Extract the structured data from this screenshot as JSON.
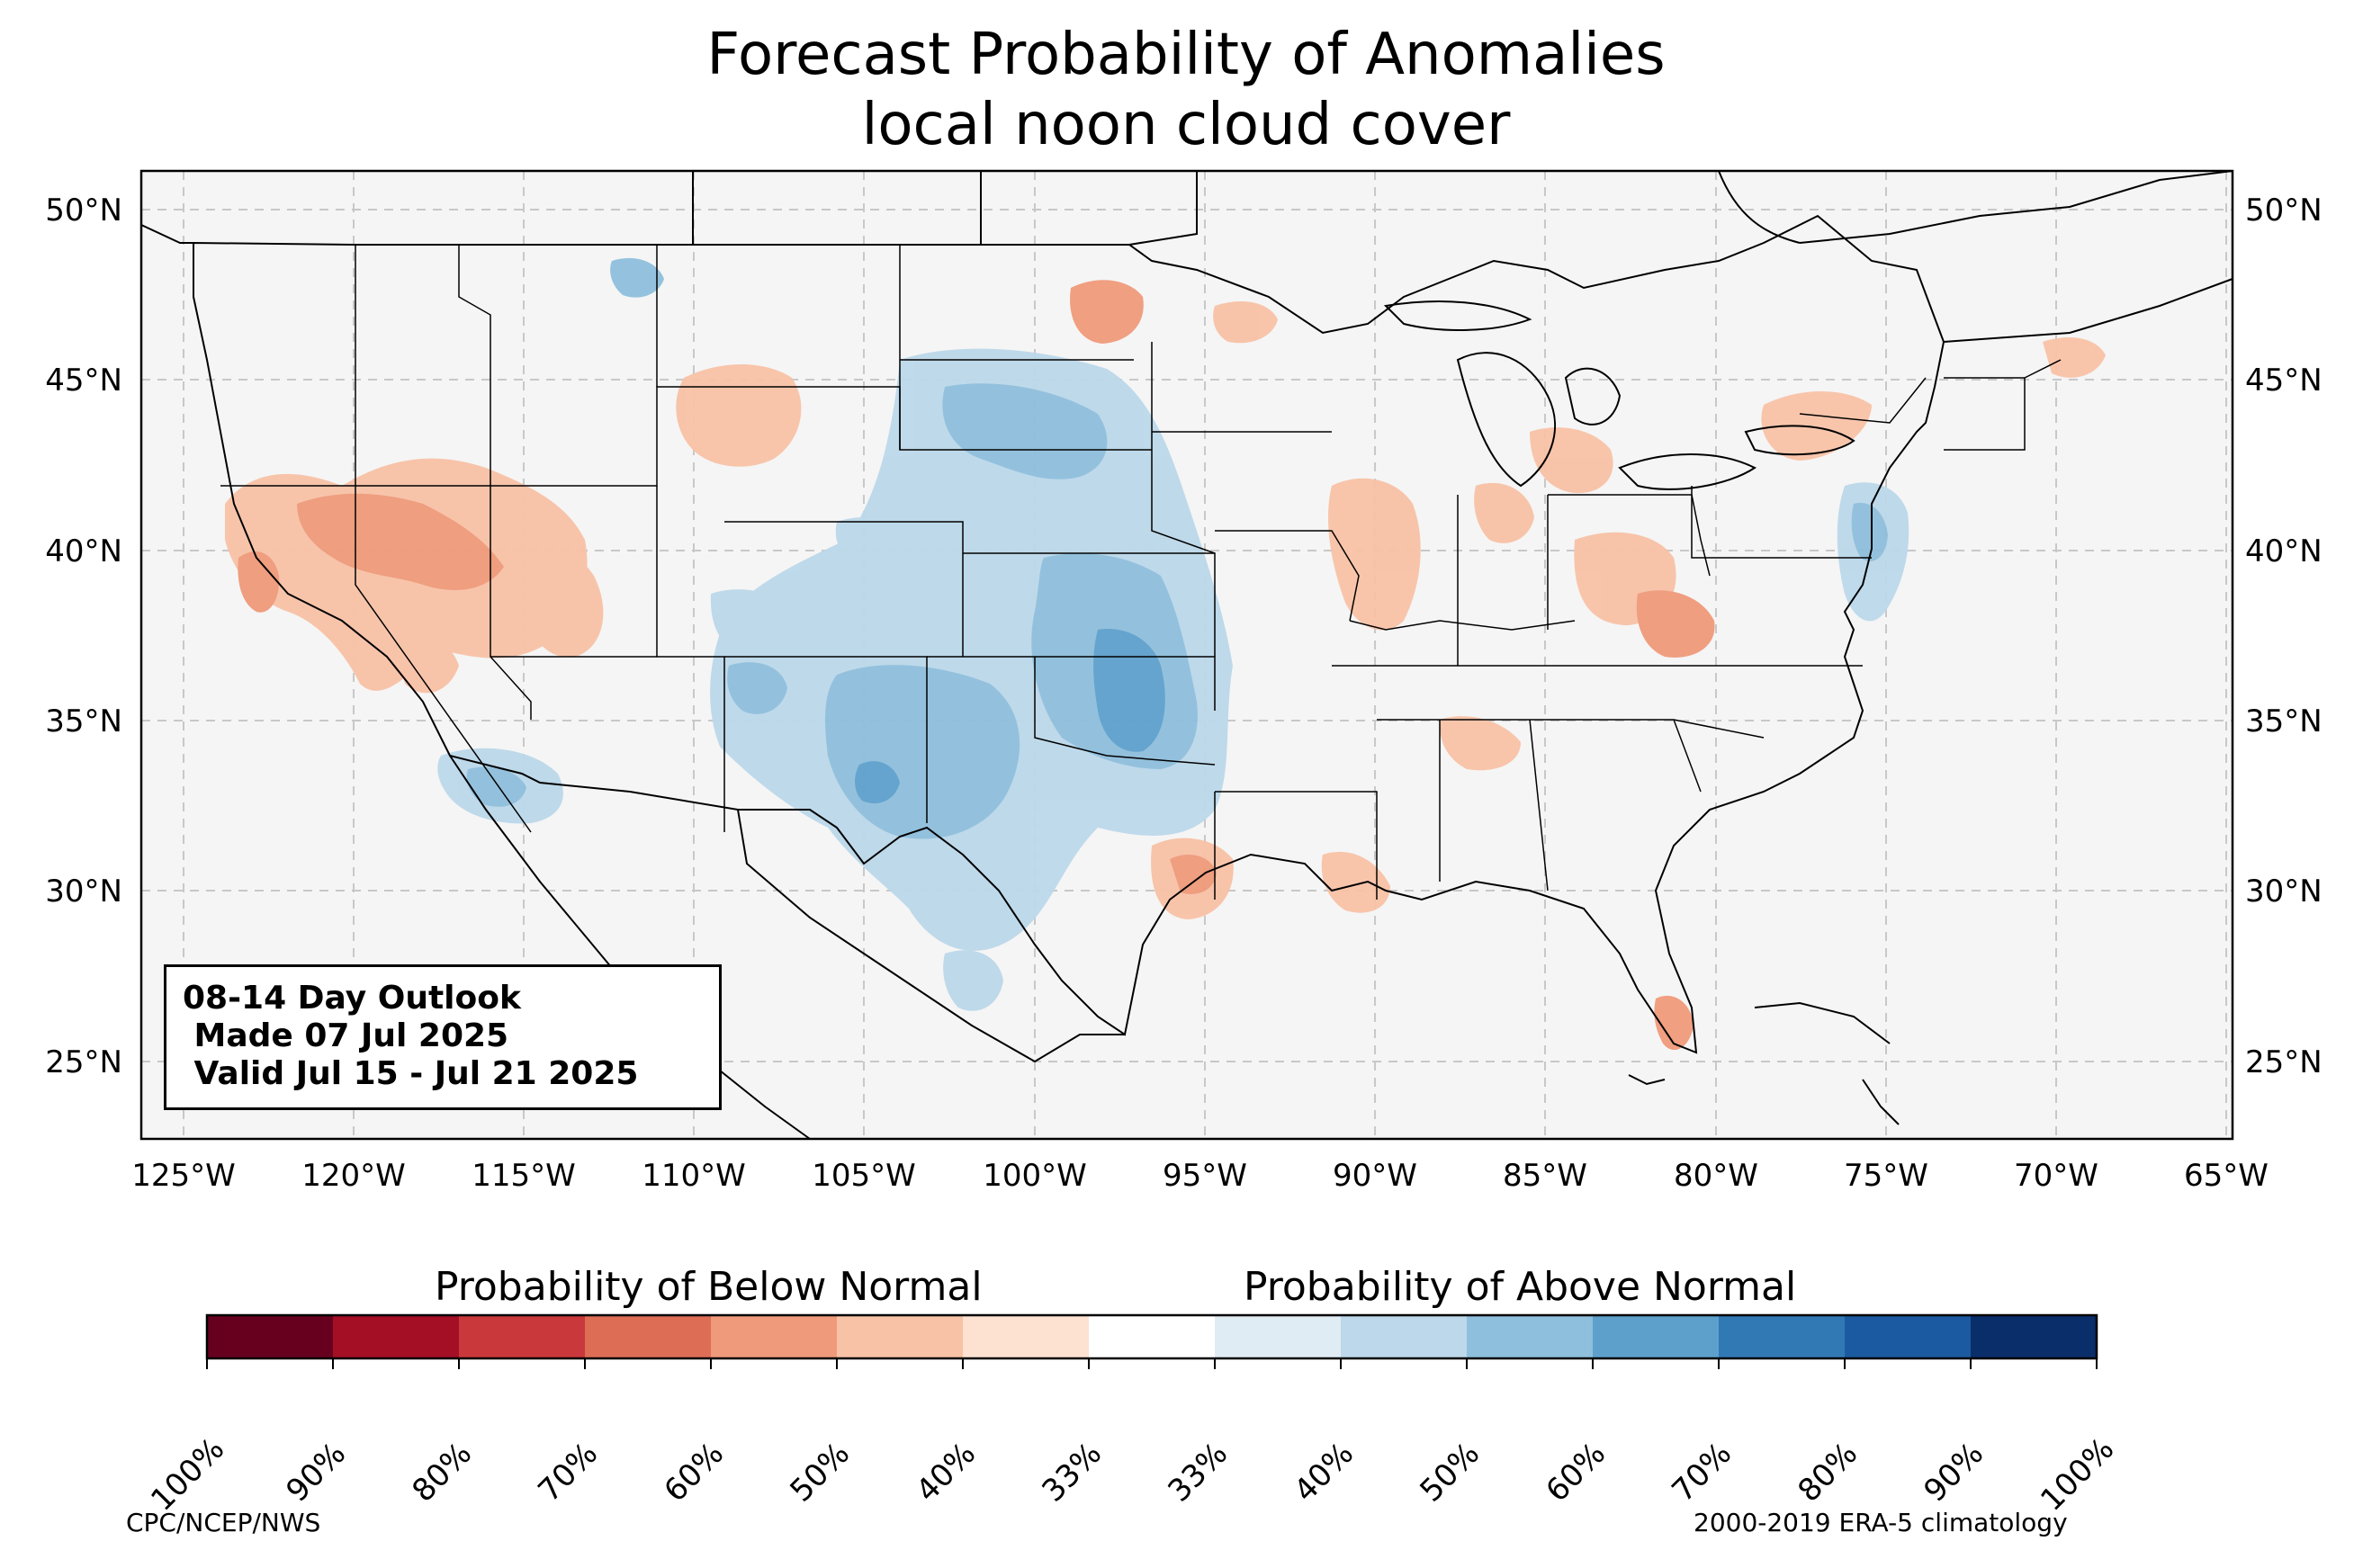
{
  "title": {
    "line1": "Forecast Probability of Anomalies",
    "line2": "local noon cloud cover"
  },
  "map": {
    "lat_labels": [
      "50°N",
      "45°N",
      "40°N",
      "35°N",
      "30°N",
      "25°N"
    ],
    "lon_labels": [
      "125°W",
      "120°W",
      "115°W",
      "110°W",
      "105°W",
      "100°W",
      "95°W",
      "90°W",
      "85°W",
      "80°W",
      "75°W",
      "70°W",
      "65°W"
    ],
    "lat_range": [
      22.8,
      51.2
    ],
    "lon_range": [
      -126.3,
      -64.9
    ],
    "background_color": "#f5f5f5",
    "gridlines": true
  },
  "outlook_box": {
    "line1": "08-14 Day Outlook",
    "line2": " Made 07 Jul 2025",
    "line3": " Valid Jul 15 - Jul 21 2025"
  },
  "colorbar": {
    "below_label": "Probability of Below Normal",
    "above_label": "Probability of Above Normal",
    "ticks": [
      "100%",
      "90%",
      "80%",
      "70%",
      "60%",
      "50%",
      "40%",
      "33%",
      "33%",
      "40%",
      "50%",
      "60%",
      "70%",
      "80%",
      "90%",
      "100%"
    ],
    "colors": [
      "#67001f",
      "#a50f26",
      "#c9383a",
      "#de6d56",
      "#ef9a7a",
      "#f8c2a6",
      "#fde2d2",
      "#ffffff",
      "#e0ecf4",
      "#bcd8ea",
      "#8ebfdc",
      "#5ea0cc",
      "#3179b5",
      "#1b5aa0",
      "#0a2e6a"
    ]
  },
  "footer": {
    "left": "CPC/NCEP/NWS",
    "right": "2000-2019 ERA-5 climatology"
  }
}
